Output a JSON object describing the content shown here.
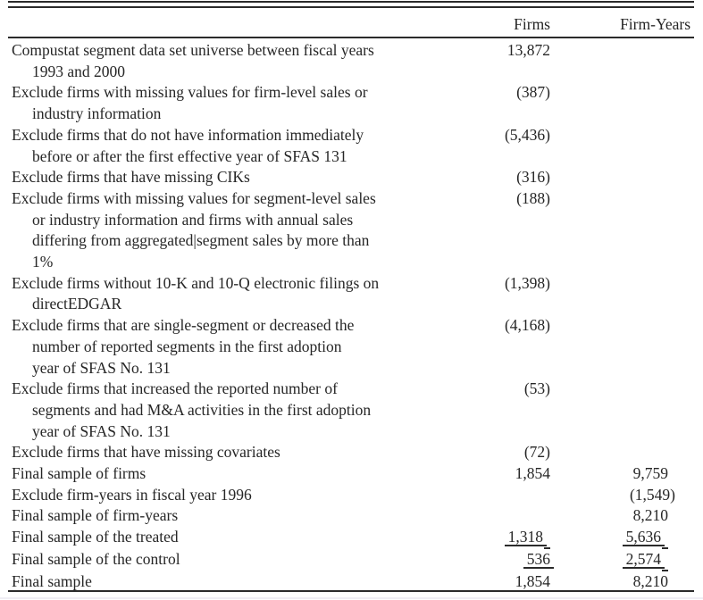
{
  "colors": {
    "background": "#ffffff",
    "text": "#262626",
    "rule": "#2b2b2b",
    "page_edge_line": "#efedf4"
  },
  "table": {
    "headers": {
      "label": "",
      "firms": "Firms",
      "firm_years": "Firm-Years"
    },
    "rows": [
      {
        "lines": [
          "Compustat segment data set universe between fiscal years",
          "1993 and 2000"
        ],
        "firms": "13,872",
        "firm_years": ""
      },
      {
        "lines": [
          "Exclude firms with missing values for firm-level sales or",
          "industry information"
        ],
        "firms": "(387)",
        "firm_years": ""
      },
      {
        "lines": [
          "Exclude firms that do not have information immediately",
          "before or after the first effective year of SFAS 131"
        ],
        "firms": "(5,436)",
        "firm_years": ""
      },
      {
        "lines": [
          "Exclude firms that have missing CIKs"
        ],
        "firms": "(316)",
        "firm_years": ""
      },
      {
        "lines": [
          "Exclude firms with missing values for segment-level sales",
          "or industry information and firms with annual sales",
          "differing from aggregated|segment sales by more than",
          "1%"
        ],
        "firms": "(188)",
        "firm_years": ""
      },
      {
        "lines": [
          "Exclude firms without 10-K and 10-Q electronic filings on",
          "directEDGAR"
        ],
        "firms": "(1,398)",
        "firm_years": ""
      },
      {
        "lines": [
          "Exclude firms that are single-segment or decreased the",
          "number of reported segments in the first adoption",
          "year of SFAS No. 131"
        ],
        "firms": "(4,168)",
        "firm_years": ""
      },
      {
        "lines": [
          "Exclude firms that increased the reported number of",
          "segments and had M&A activities in the first adoption",
          "year of SFAS No. 131"
        ],
        "firms": "(53)",
        "firm_years": ""
      },
      {
        "lines": [
          "Exclude firms that have missing covariates"
        ],
        "firms": "(72)",
        "firm_years": ""
      },
      {
        "lines": [
          "Final sample of firms"
        ],
        "firms": "1,854",
        "firm_years": "9,759"
      },
      {
        "lines": [
          "Exclude firm-years in fiscal year 1996"
        ],
        "firms": "",
        "firm_years": "(1,549)"
      },
      {
        "lines": [
          "Final sample of firm-years"
        ],
        "firms": "",
        "firm_years": "8,210"
      },
      {
        "lines": [
          "Final sample of the treated"
        ],
        "firms": "1,318",
        "firm_years": "5,636",
        "firms_underline": true,
        "fy_underline": true,
        "firms_tail": true,
        "fy_tail": true
      },
      {
        "lines": [
          "Final sample of the control"
        ],
        "firms": "536",
        "firm_years": "2,574",
        "firms_underline": true,
        "fy_underline": true,
        "firms_tail": false,
        "fy_tail": true
      },
      {
        "lines": [
          "Final sample"
        ],
        "firms": "1,854",
        "firm_years": "8,210"
      }
    ]
  }
}
